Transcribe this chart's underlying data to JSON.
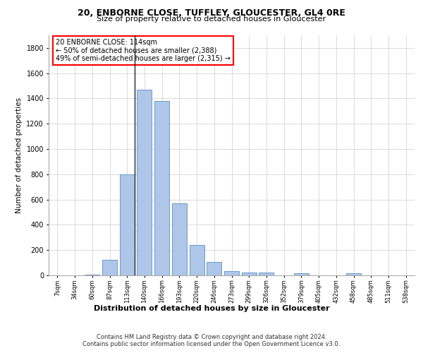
{
  "title1": "20, ENBORNE CLOSE, TUFFLEY, GLOUCESTER, GL4 0RE",
  "title2": "Size of property relative to detached houses in Gloucester",
  "xlabel": "Distribution of detached houses by size in Gloucester",
  "ylabel": "Number of detached properties",
  "footer1": "Contains HM Land Registry data © Crown copyright and database right 2024.",
  "footer2": "Contains public sector information licensed under the Open Government Licence v3.0.",
  "annotation_line1": "20 ENBORNE CLOSE: 114sqm",
  "annotation_line2": "← 50% of detached houses are smaller (2,388)",
  "annotation_line3": "49% of semi-detached houses are larger (2,315) →",
  "bar_labels": [
    "7sqm",
    "34sqm",
    "60sqm",
    "87sqm",
    "113sqm",
    "140sqm",
    "166sqm",
    "193sqm",
    "220sqm",
    "246sqm",
    "273sqm",
    "299sqm",
    "326sqm",
    "352sqm",
    "379sqm",
    "405sqm",
    "432sqm",
    "458sqm",
    "485sqm",
    "511sqm",
    "538sqm"
  ],
  "bar_values": [
    0,
    0,
    3,
    125,
    800,
    1470,
    1380,
    570,
    240,
    105,
    35,
    25,
    20,
    0,
    15,
    0,
    0,
    15,
    0,
    0,
    0
  ],
  "bar_color": "#aec6e8",
  "bar_edge_color": "#5a8fc2",
  "vline_bar_index": 4,
  "ylim": [
    0,
    1900
  ],
  "yticks": [
    0,
    200,
    400,
    600,
    800,
    1000,
    1200,
    1400,
    1600,
    1800
  ],
  "bg_color": "#ffffff",
  "grid_color": "#cccccc"
}
